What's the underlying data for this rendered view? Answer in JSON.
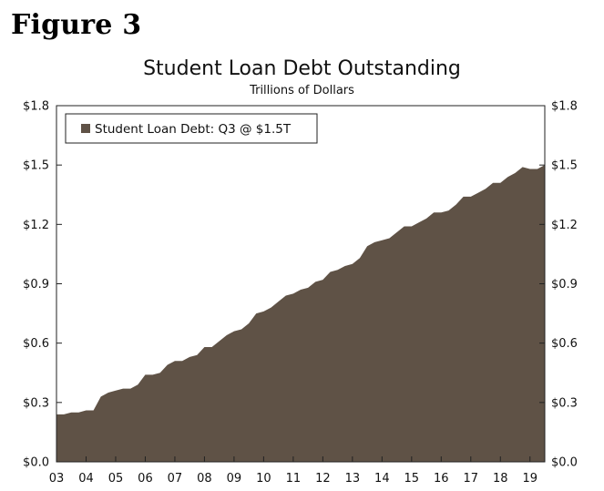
{
  "figure_label": "Figure 3",
  "chart_data": {
    "type": "area",
    "title": "Student Loan Debt Outstanding",
    "subtitle": "Trillions of Dollars",
    "xlabel": "",
    "ylabel": "",
    "ylim": [
      0,
      1.8
    ],
    "y_ticks": [
      0.0,
      0.3,
      0.6,
      0.9,
      1.2,
      1.5,
      1.8
    ],
    "y_tick_labels": [
      "$0.0",
      "$0.3",
      "$0.6",
      "$0.9",
      "$1.2",
      "$1.5",
      "$1.8"
    ],
    "x_ticks": [
      2003,
      2004,
      2005,
      2006,
      2007,
      2008,
      2009,
      2010,
      2011,
      2012,
      2013,
      2014,
      2015,
      2016,
      2017,
      2018,
      2019
    ],
    "x_tick_labels": [
      "03",
      "04",
      "05",
      "06",
      "07",
      "08",
      "09",
      "10",
      "11",
      "12",
      "13",
      "14",
      "15",
      "16",
      "17",
      "18",
      "19"
    ],
    "xlim": [
      "2003-Q1",
      "2019-Q3"
    ],
    "grid": false,
    "legend_position": "top-left",
    "fill_color": "#5f5246",
    "series": [
      {
        "name": "Student Loan Debt: Q3 @ $1.5T",
        "x": [
          "2003-Q1",
          "2003-Q2",
          "2003-Q3",
          "2003-Q4",
          "2004-Q1",
          "2004-Q2",
          "2004-Q3",
          "2004-Q4",
          "2005-Q1",
          "2005-Q2",
          "2005-Q3",
          "2005-Q4",
          "2006-Q1",
          "2006-Q2",
          "2006-Q3",
          "2006-Q4",
          "2007-Q1",
          "2007-Q2",
          "2007-Q3",
          "2007-Q4",
          "2008-Q1",
          "2008-Q2",
          "2008-Q3",
          "2008-Q4",
          "2009-Q1",
          "2009-Q2",
          "2009-Q3",
          "2009-Q4",
          "2010-Q1",
          "2010-Q2",
          "2010-Q3",
          "2010-Q4",
          "2011-Q1",
          "2011-Q2",
          "2011-Q3",
          "2011-Q4",
          "2012-Q1",
          "2012-Q2",
          "2012-Q3",
          "2012-Q4",
          "2013-Q1",
          "2013-Q2",
          "2013-Q3",
          "2013-Q4",
          "2014-Q1",
          "2014-Q2",
          "2014-Q3",
          "2014-Q4",
          "2015-Q1",
          "2015-Q2",
          "2015-Q3",
          "2015-Q4",
          "2016-Q1",
          "2016-Q2",
          "2016-Q3",
          "2016-Q4",
          "2017-Q1",
          "2017-Q2",
          "2017-Q3",
          "2017-Q4",
          "2018-Q1",
          "2018-Q2",
          "2018-Q3",
          "2018-Q4",
          "2019-Q1",
          "2019-Q2",
          "2019-Q3"
        ],
        "values": [
          0.24,
          0.24,
          0.25,
          0.25,
          0.26,
          0.26,
          0.33,
          0.35,
          0.36,
          0.37,
          0.37,
          0.39,
          0.44,
          0.44,
          0.45,
          0.49,
          0.51,
          0.51,
          0.53,
          0.54,
          0.58,
          0.58,
          0.61,
          0.64,
          0.66,
          0.67,
          0.7,
          0.75,
          0.76,
          0.78,
          0.81,
          0.84,
          0.85,
          0.87,
          0.88,
          0.91,
          0.92,
          0.96,
          0.97,
          0.99,
          1.0,
          1.03,
          1.09,
          1.11,
          1.12,
          1.13,
          1.16,
          1.19,
          1.19,
          1.21,
          1.23,
          1.26,
          1.26,
          1.27,
          1.3,
          1.34,
          1.34,
          1.36,
          1.38,
          1.41,
          1.41,
          1.44,
          1.46,
          1.49,
          1.48,
          1.48,
          1.5
        ]
      }
    ]
  }
}
